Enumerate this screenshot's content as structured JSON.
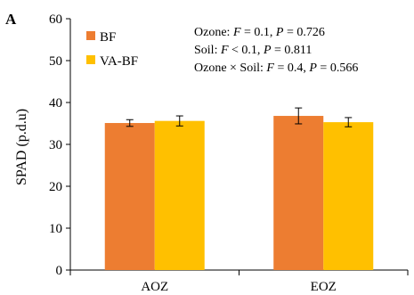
{
  "panel_label": "A",
  "chart_data": {
    "type": "bar",
    "categories": [
      "AOZ",
      "EOZ"
    ],
    "series": [
      {
        "name": "BF",
        "values": [
          35.1,
          36.8
        ],
        "errors": [
          0.8,
          1.9
        ],
        "color": "#ED7D31"
      },
      {
        "name": "VA-BF",
        "values": [
          35.6,
          35.3
        ],
        "errors": [
          1.2,
          1.1
        ],
        "color": "#FFC000"
      }
    ],
    "xlabel": "",
    "ylabel": "SPAD (p.d.u)",
    "ylim": [
      0,
      60
    ],
    "yticks": [
      0,
      10,
      20,
      30,
      40,
      50,
      60
    ],
    "grid": false,
    "legend_position": "top-left",
    "annotations": [
      {
        "label": "Ozone: ",
        "f": "0.1",
        "p": "0.726",
        "f_op": " = "
      },
      {
        "label": "Soil: ",
        "f": "0.1",
        "p": "0.811",
        "f_op": " < "
      },
      {
        "label": "Ozone × Soil: ",
        "f": "0.4",
        "p": "0.566",
        "f_op": " = "
      }
    ],
    "stat_symbols": {
      "f": "F",
      "p": "P",
      "eq": " = ",
      "sep": ", "
    }
  }
}
